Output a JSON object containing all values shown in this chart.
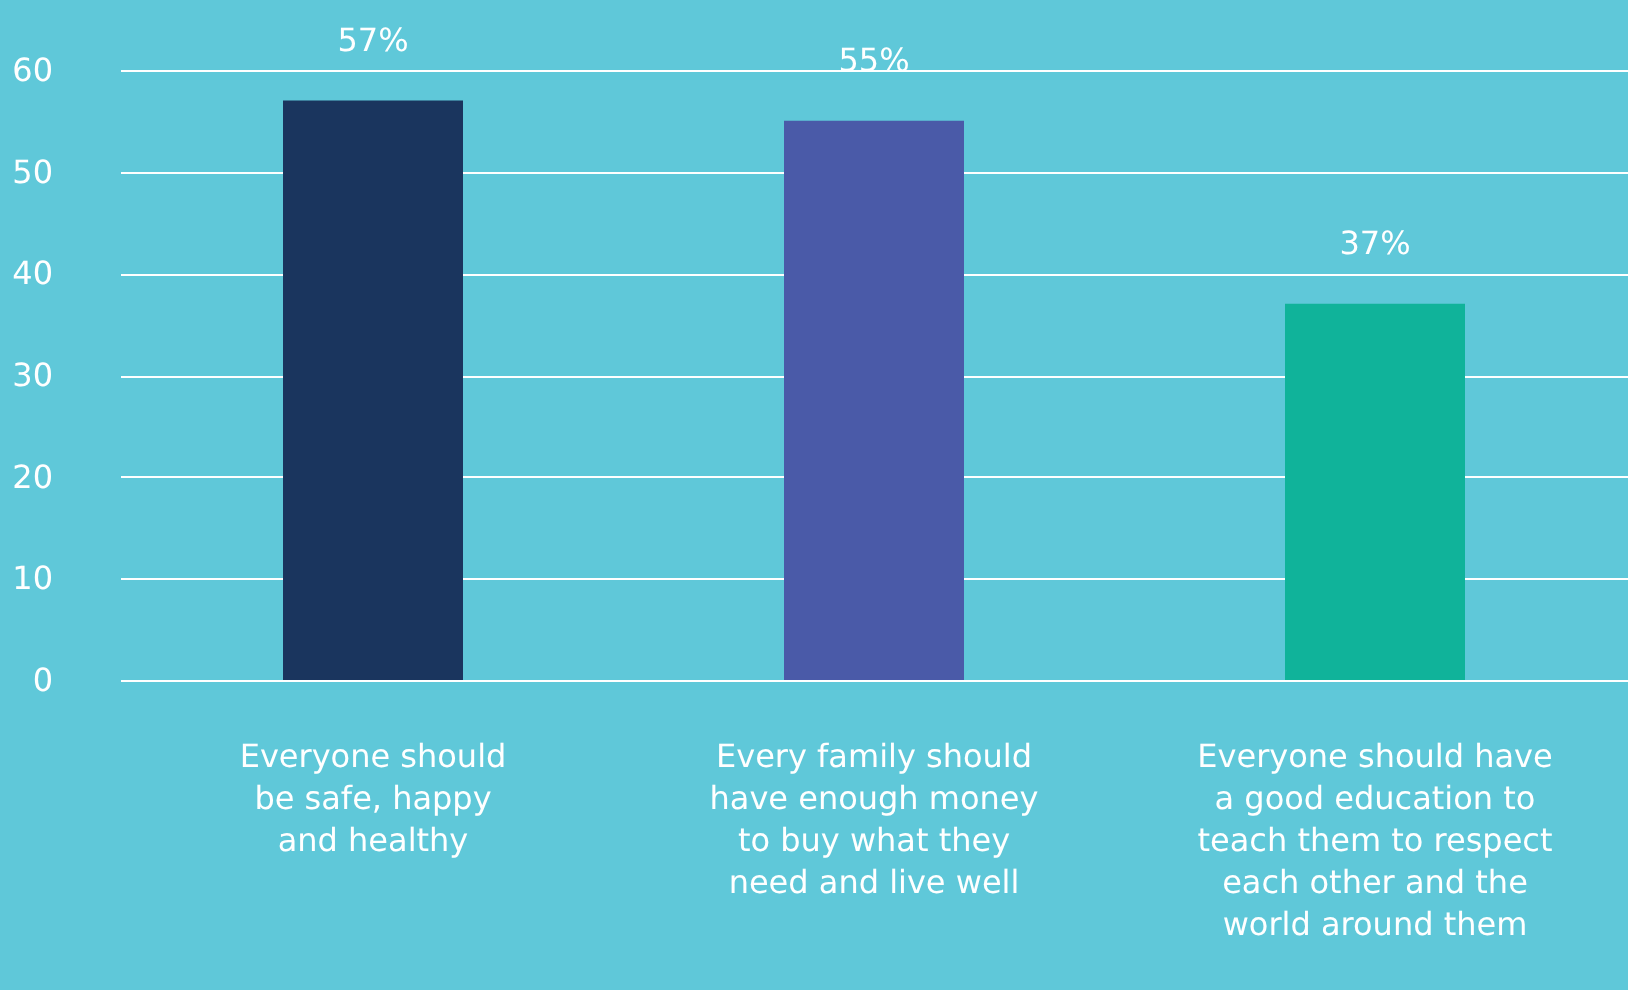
{
  "chart_data": {
    "type": "bar",
    "categories": [
      "Everyone should\nbe safe, happy\nand healthy",
      "Every family should\nhave enough money\nto buy what they\nneed and live well",
      "Everyone should have\na good education to\nteach them to respect\neach other and the\nworld around them"
    ],
    "values": [
      57,
      55,
      37
    ],
    "colors": [
      "#1a355e",
      "#4a5aa8",
      "#10b39a"
    ],
    "value_labels": [
      "57%",
      "55%",
      "37%"
    ],
    "ylim": [
      0,
      60
    ],
    "yticks": [
      0,
      10,
      20,
      30,
      40,
      50,
      60
    ],
    "grid": "y",
    "legend": false
  }
}
